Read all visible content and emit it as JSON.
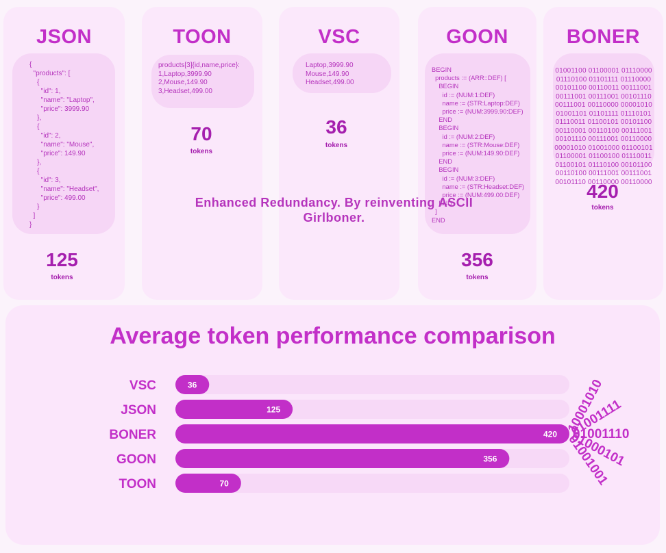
{
  "formats": [
    {
      "title": "JSON",
      "code": "{\n  \"products\": [\n    {\n      \"id\": 1,\n      \"name\": \"Laptop\",\n      \"price\": 3999.90\n    },\n    {\n      \"id\": 2,\n      \"name\": \"Mouse\",\n      \"price\": 149.90\n    },\n    {\n      \"id\": 3,\n      \"name\": \"Headset\",\n      \"price\": 499.00\n    }\n  ]\n}",
      "tokens": "125",
      "unit": "tokens"
    },
    {
      "title": "TOON",
      "code": "products[3]{id,name,price}:\n1,Laptop,3999.90\n2,Mouse,149.90\n3,Headset,499.00",
      "tokens": "70",
      "unit": "tokens"
    },
    {
      "title": "VSC",
      "code": "Laptop,3999.90\nMouse,149.90\nHeadset,499.00",
      "tokens": "36",
      "unit": "tokens"
    },
    {
      "title": "GOON",
      "code": "BEGIN\n  products := (ARR::DEF) [\n    BEGIN\n      id := (NUM:1:DEF)\n      name := (STR:Laptop:DEF)\n      price := (NUM:3999.90:DEF)\n    END\n    BEGIN\n      id := (NUM:2:DEF)\n      name := (STR:Mouse:DEF)\n      price := (NUM:149.90:DEF)\n    END\n    BEGIN\n      id := (NUM:3:DEF)\n      name := (STR:Headset:DEF)\n      price := (NUM:499.00:DEF)\n    END\n  ]\nEND",
      "tokens": "356",
      "unit": "tokens"
    },
    {
      "title": "BONER",
      "code": "01001100 01100001 01110000\n01110100 01101111 01110000\n00101100 00110011 00111001\n00111001 00111001 00101110\n00111001 00110000 00001010\n01001101 01101111 01110101\n01110011 01100101 00101100\n00110001 00110100 00111001\n00101110 00111001 00110000\n00001010 01001000 01100101\n01100001 01100100 01110011\n01100101 01110100 00101100\n00110100 00111001 00111001\n00101110 00110000 00110000",
      "tokens": "420",
      "unit": "tokens"
    }
  ],
  "chart_data": {
    "type": "bar",
    "orientation": "horizontal",
    "title": "Average token performance comparison",
    "categories": [
      "VSC",
      "JSON",
      "BONER",
      "GOON",
      "TOON"
    ],
    "values": [
      36,
      125,
      420,
      356,
      70
    ],
    "xlim": [
      0,
      420
    ],
    "xlabel": "",
    "ylabel": "",
    "grid": false,
    "data_labels": true
  },
  "decoration": {
    "binary_strings": [
      "10001010",
      "01001111",
      "01001110",
      "01000101",
      "01001001"
    ]
  },
  "caption": {
    "line1": "Enhanced Redundancy. By reinventing ASCII",
    "line2": "Girlboner."
  },
  "colors": {
    "accent": "#c22fc8",
    "bar": "#c22fc8",
    "track": "#f7d9f7",
    "panel": "#fbe8fb"
  }
}
